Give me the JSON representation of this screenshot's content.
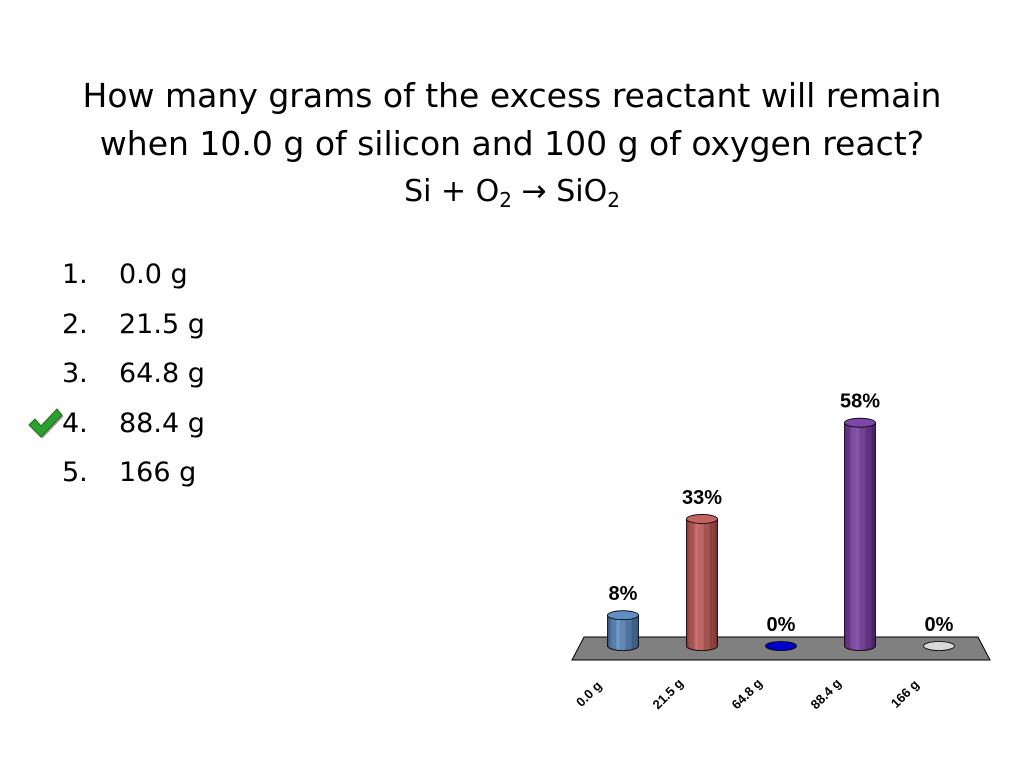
{
  "question": {
    "line1": "How many grams of the excess reactant will remain",
    "line2": "when 10.0 g of silicon and 100 g of oxygen react?",
    "equation": {
      "part1": "Si + O",
      "sub1": "2",
      "part2": " → SiO",
      "sub2": "2"
    }
  },
  "answers": [
    {
      "number": "1.",
      "text": "0.0 g"
    },
    {
      "number": "2.",
      "text": "21.5 g"
    },
    {
      "number": "3.",
      "text": "64.8 g"
    },
    {
      "number": "4.",
      "text": "88.4 g",
      "correct": true
    },
    {
      "number": "5.",
      "text": "166 g"
    }
  ],
  "correct_marker": "checkmark-icon",
  "chart_data": {
    "type": "bar",
    "categories": [
      "0.0 g",
      "21.5 g",
      "64.8 g",
      "88.4 g",
      "166 g"
    ],
    "values": [
      8,
      33,
      0,
      58,
      0
    ],
    "value_labels": [
      "8%",
      "33%",
      "0%",
      "58%",
      "0%"
    ],
    "colors": [
      "#4f81bd",
      "#c0504d",
      "#0000cc",
      "#7030a0",
      "#d9d9d9"
    ],
    "floor_color": "#808080",
    "title": "",
    "xlabel": "",
    "ylabel": "",
    "grid": false,
    "legend": "none"
  }
}
